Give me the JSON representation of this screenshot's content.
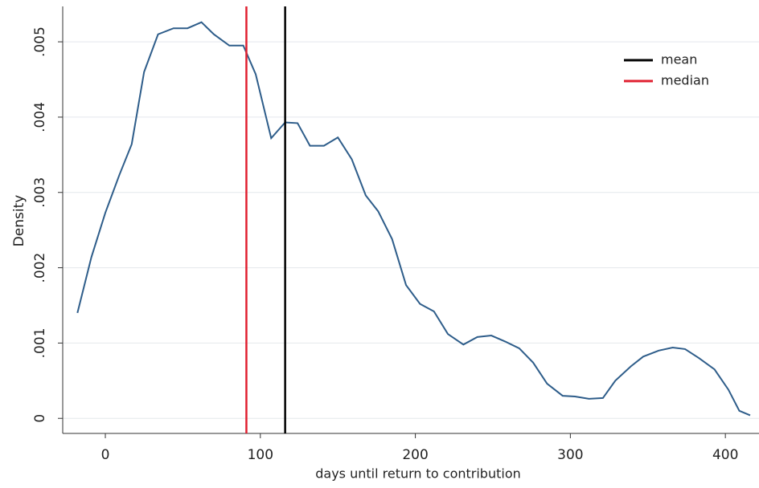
{
  "chart_data": {
    "type": "line",
    "ylabel": "Density",
    "xlabel": "days until return to contribution",
    "x": [
      -18,
      -9,
      0,
      9,
      17,
      25,
      34,
      44,
      53,
      62,
      70,
      80,
      89,
      97,
      107,
      116,
      124,
      132,
      141,
      150,
      159,
      168,
      176,
      185,
      194,
      203,
      212,
      221,
      231,
      240,
      249,
      258,
      267,
      276,
      285,
      295,
      303,
      312,
      321,
      329,
      339,
      347,
      357,
      366,
      374,
      383,
      393,
      402,
      409,
      416
    ],
    "values": [
      0.0014,
      0.00214,
      0.00273,
      0.00323,
      0.00364,
      0.0046,
      0.0051,
      0.00518,
      0.00518,
      0.00526,
      0.0051,
      0.00495,
      0.00495,
      0.00457,
      0.00372,
      0.00393,
      0.00392,
      0.00362,
      0.00362,
      0.00373,
      0.00344,
      0.00296,
      0.00275,
      0.00238,
      0.00177,
      0.00152,
      0.00142,
      0.00112,
      0.00098,
      0.00108,
      0.0011,
      0.00102,
      0.00093,
      0.00074,
      0.00046,
      0.0003,
      0.00029,
      0.00026,
      0.00027,
      0.0005,
      0.00069,
      0.00082,
      0.0009,
      0.00094,
      0.00092,
      0.0008,
      0.00065,
      0.00038,
      0.0001,
      4e-05
    ],
    "color": "#2e5d8a",
    "vlines": [
      {
        "name": "mean",
        "color": "#000000",
        "x": 116
      },
      {
        "name": "median",
        "color": "#e02030",
        "x": 91
      }
    ],
    "xlim": [
      -27.5,
      421.7
    ],
    "ylim": [
      -0.0002,
      0.00547
    ],
    "xticks": [
      0,
      100,
      200,
      300,
      400
    ],
    "yticks": [
      0,
      {
        "value": 0.001,
        "label": ".001"
      },
      {
        "value": 0.002,
        "label": ".002"
      },
      {
        "value": 0.003,
        "label": ".003"
      },
      {
        "value": 0.004,
        "label": ".004"
      },
      {
        "value": 0.005,
        "label": ".005"
      }
    ],
    "grid": true
  }
}
